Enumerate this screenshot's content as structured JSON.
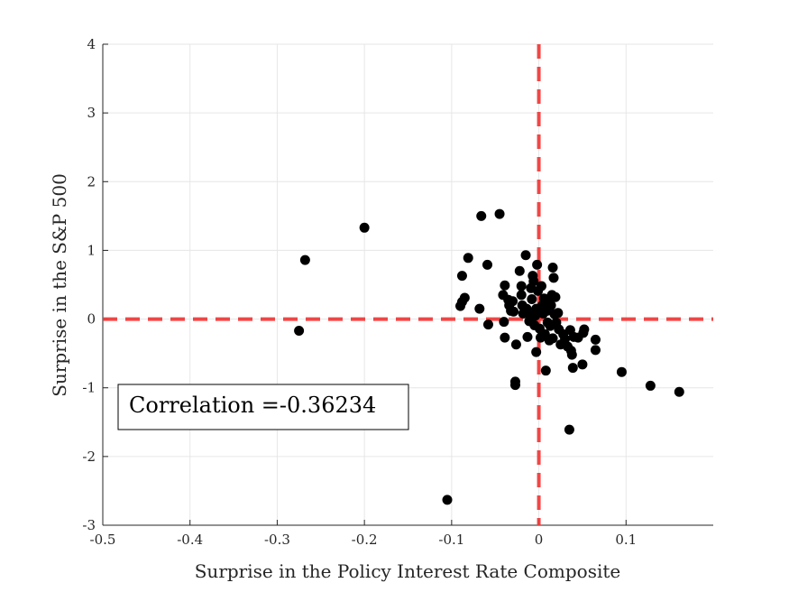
{
  "chart_data": {
    "type": "scatter",
    "title": "",
    "xlabel": "Surprise in the Policy Interest Rate Composite",
    "ylabel": "Surprise in the S&P 500",
    "xlim": [
      -0.5,
      0.2
    ],
    "ylim": [
      -3,
      4
    ],
    "xticks": [
      -0.5,
      -0.4,
      -0.3,
      -0.2,
      -0.1,
      0,
      0.1
    ],
    "xtick_labels": [
      "-0.5",
      "-0.4",
      "-0.3",
      "-0.2",
      "-0.1",
      "0",
      "0.1"
    ],
    "yticks": [
      -3,
      -2,
      -1,
      0,
      1,
      2,
      3,
      4
    ],
    "ytick_labels": [
      "-3",
      "-2",
      "-1",
      "0",
      "1",
      "2",
      "3",
      "4"
    ],
    "grid": true,
    "annotation": "Correlation =-0.36234",
    "reference_lines": {
      "x": 0,
      "y": 0,
      "color": "#f03c3c",
      "style": "dashed"
    },
    "marker_color": "#000000",
    "points": [
      [
        -0.275,
        -0.17
      ],
      [
        -0.268,
        0.86
      ],
      [
        -0.2,
        1.33
      ],
      [
        -0.105,
        -2.63
      ],
      [
        -0.09,
        0.19
      ],
      [
        -0.088,
        0.25
      ],
      [
        -0.088,
        0.63
      ],
      [
        -0.085,
        0.31
      ],
      [
        -0.081,
        0.89
      ],
      [
        -0.066,
        1.5
      ],
      [
        -0.068,
        0.15
      ],
      [
        -0.059,
        0.79
      ],
      [
        -0.058,
        -0.08
      ],
      [
        -0.045,
        1.53
      ],
      [
        -0.041,
        0.35
      ],
      [
        -0.039,
        0.49
      ],
      [
        -0.04,
        -0.04
      ],
      [
        -0.039,
        -0.27
      ],
      [
        -0.035,
        0.28
      ],
      [
        -0.034,
        0.2
      ],
      [
        -0.032,
        0.12
      ],
      [
        -0.03,
        0.26
      ],
      [
        -0.029,
        0.11
      ],
      [
        -0.027,
        -0.91
      ],
      [
        -0.027,
        -0.96
      ],
      [
        -0.026,
        -0.37
      ],
      [
        -0.022,
        0.7
      ],
      [
        -0.02,
        0.48
      ],
      [
        -0.02,
        0.35
      ],
      [
        -0.019,
        0.2
      ],
      [
        -0.018,
        0.08
      ],
      [
        -0.015,
        0.93
      ],
      [
        -0.014,
        0.15
      ],
      [
        -0.013,
        -0.26
      ],
      [
        -0.011,
        -0.03
      ],
      [
        -0.01,
        0.05
      ],
      [
        -0.009,
        0.45
      ],
      [
        -0.008,
        0.29
      ],
      [
        -0.007,
        0.09
      ],
      [
        -0.007,
        0.63
      ],
      [
        -0.006,
        0.55
      ],
      [
        -0.005,
        -0.09
      ],
      [
        -0.004,
        0.05
      ],
      [
        -0.003,
        0.15
      ],
      [
        -0.003,
        -0.48
      ],
      [
        -0.002,
        0.79
      ],
      [
        -0.001,
        0.41
      ],
      [
        0.001,
        -0.14
      ],
      [
        0.002,
        -0.27
      ],
      [
        0.003,
        0.48
      ],
      [
        0.004,
        0.2
      ],
      [
        0.005,
        0.08
      ],
      [
        0.006,
        0.3
      ],
      [
        0.007,
        -0.22
      ],
      [
        0.008,
        -0.75
      ],
      [
        0.009,
        0.12
      ],
      [
        0.01,
        -0.05
      ],
      [
        0.011,
        0.23
      ],
      [
        0.012,
        -0.31
      ],
      [
        0.013,
        -0.1
      ],
      [
        0.014,
        0.2
      ],
      [
        0.015,
        0.35
      ],
      [
        0.016,
        -0.28
      ],
      [
        0.016,
        0.75
      ],
      [
        0.017,
        0.6
      ],
      [
        0.018,
        0.07
      ],
      [
        0.019,
        0.32
      ],
      [
        0.02,
        -0.05
      ],
      [
        0.022,
        0.09
      ],
      [
        0.023,
        -0.15
      ],
      [
        0.025,
        -0.37
      ],
      [
        0.028,
        -0.22
      ],
      [
        0.03,
        -0.29
      ],
      [
        0.033,
        -0.4
      ],
      [
        0.035,
        -1.61
      ],
      [
        0.036,
        -0.16
      ],
      [
        0.037,
        -0.46
      ],
      [
        0.038,
        -0.52
      ],
      [
        0.039,
        -0.71
      ],
      [
        0.04,
        -0.26
      ],
      [
        0.045,
        -0.27
      ],
      [
        0.05,
        -0.66
      ],
      [
        0.051,
        -0.2
      ],
      [
        0.052,
        -0.15
      ],
      [
        0.065,
        -0.3
      ],
      [
        0.065,
        -0.45
      ],
      [
        0.095,
        -0.77
      ],
      [
        0.128,
        -0.97
      ],
      [
        0.161,
        -1.06
      ]
    ]
  }
}
